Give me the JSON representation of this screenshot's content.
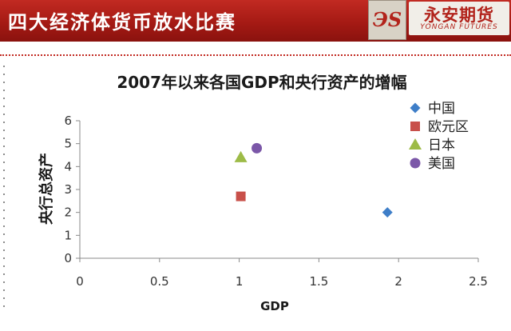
{
  "banner": {
    "title": "四大经济体货币放水比赛",
    "logo_mark": "ЭS",
    "logo_name": "永安期货",
    "logo_sub": "YONGAN FUTURES"
  },
  "chart_data": {
    "type": "scatter",
    "title": "2007年以来各国GDP和央行资产的增幅",
    "xlabel": "GDP",
    "ylabel": "央行总资产",
    "xlim": [
      0,
      2.5
    ],
    "ylim": [
      0,
      6
    ],
    "x_ticks": [
      "0",
      "0.5",
      "1",
      "1.5",
      "2",
      "2.5"
    ],
    "y_ticks": [
      "0",
      "1",
      "2",
      "3",
      "4",
      "5",
      "6"
    ],
    "grid": false,
    "legend_position": "right",
    "series": [
      {
        "name": "中国",
        "x": 1.93,
        "y": 2.0,
        "marker": "diamond",
        "color": "#3e7ec8"
      },
      {
        "name": "欧元区",
        "x": 1.01,
        "y": 2.7,
        "marker": "square",
        "color": "#c8504a"
      },
      {
        "name": "日本",
        "x": 1.01,
        "y": 4.4,
        "marker": "triangle",
        "color": "#9dbb47"
      },
      {
        "name": "美国",
        "x": 1.11,
        "y": 4.8,
        "marker": "circle",
        "color": "#7b57a8"
      }
    ]
  }
}
